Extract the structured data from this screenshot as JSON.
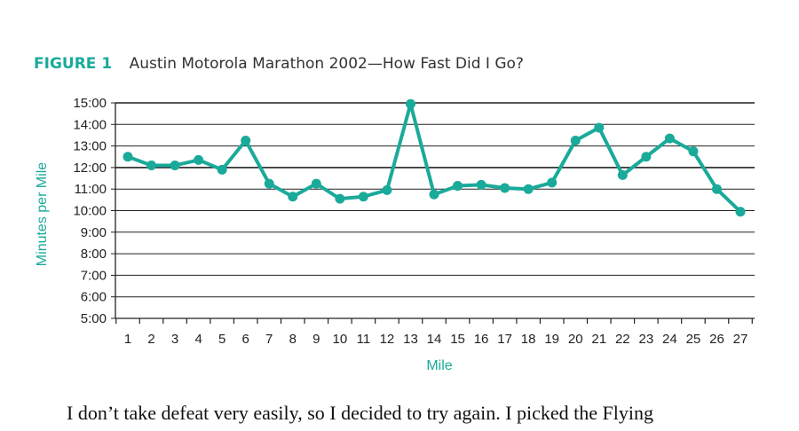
{
  "figure": {
    "label": "FIGURE 1",
    "title": "Austin Motorola Marathon 2002—How Fast Did I Go?"
  },
  "chart_data": {
    "type": "line",
    "xlabel": "Mile",
    "ylabel": "Minutes per Mile",
    "x": [
      1,
      2,
      3,
      4,
      5,
      6,
      7,
      8,
      9,
      10,
      11,
      12,
      13,
      14,
      15,
      16,
      17,
      18,
      19,
      20,
      21,
      22,
      23,
      24,
      25,
      26,
      27
    ],
    "y_tick_labels": [
      "5:00",
      "6:00",
      "7:00",
      "8:00",
      "9:00",
      "10:00",
      "11:00",
      "12:00",
      "13:00",
      "14:00",
      "15:00"
    ],
    "ylim": [
      5,
      15
    ],
    "grid": true,
    "series": [
      {
        "values": [
          12.5,
          12.1,
          12.1,
          12.35,
          11.9,
          13.25,
          11.25,
          10.65,
          11.25,
          10.55,
          10.65,
          10.95,
          14.95,
          10.75,
          11.15,
          11.2,
          11.05,
          11.0,
          11.3,
          13.25,
          13.85,
          11.65,
          12.5,
          13.35,
          12.75,
          11.0,
          9.95
        ]
      }
    ],
    "colors": {
      "line": "#1aaa9a",
      "grid": "#222222",
      "accent": "#1aaa9a"
    }
  },
  "body_text": "I don’t take defeat very easily, so I decided to try again. I picked the Flying"
}
